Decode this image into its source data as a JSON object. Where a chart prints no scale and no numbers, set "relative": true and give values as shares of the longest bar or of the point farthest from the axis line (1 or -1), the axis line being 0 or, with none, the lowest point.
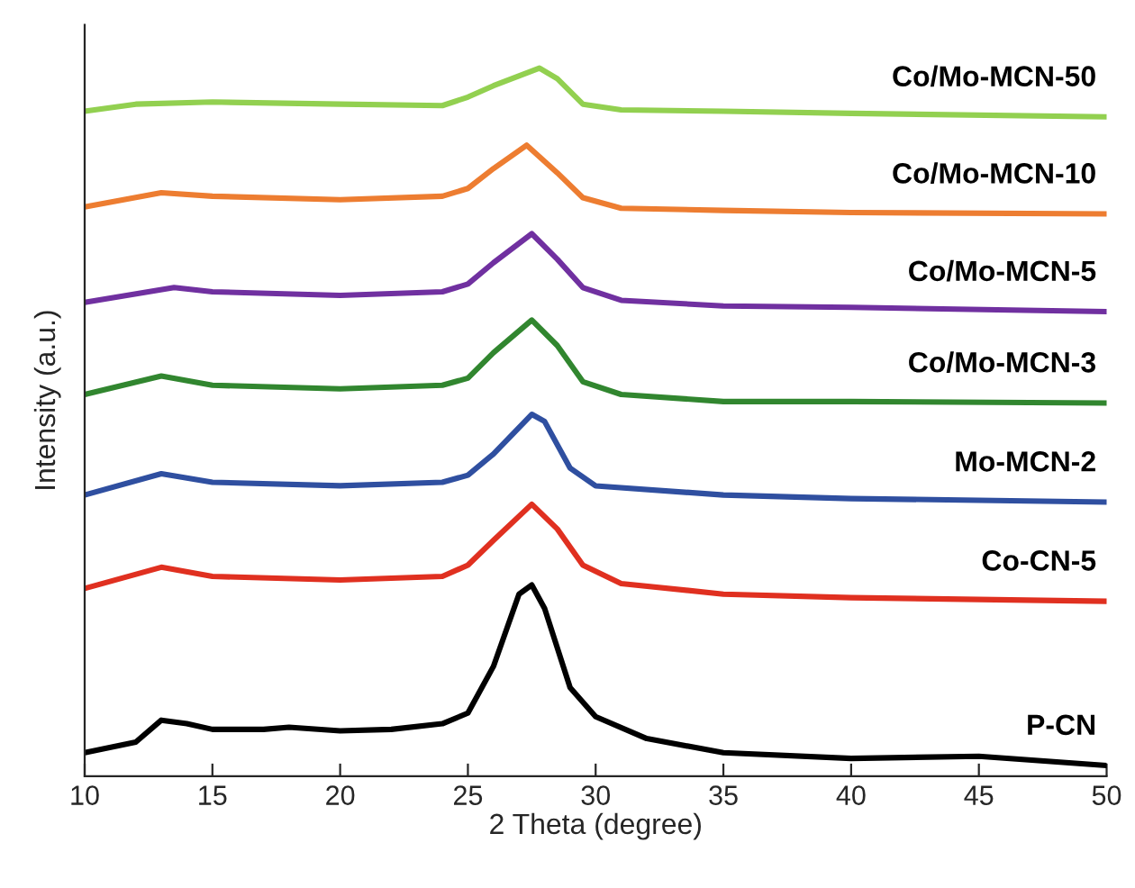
{
  "chart_data": {
    "type": "line",
    "relative": true,
    "xlabel": "2 Theta (degree)",
    "ylabel": "Intensity (a.u.)",
    "xlim": [
      10,
      50
    ],
    "xticks": [
      10,
      15,
      20,
      25,
      30,
      35,
      40,
      45,
      50
    ],
    "grid": false,
    "legend": false,
    "marker": "none",
    "line_style": "solid",
    "series": [
      {
        "name": "P-CN",
        "color": "#000000",
        "x": [
          10,
          12,
          13,
          14,
          15,
          17,
          18,
          20,
          22,
          24,
          25,
          26,
          27,
          27.5,
          28,
          29,
          30,
          32,
          35,
          40,
          45,
          50
        ],
        "values": [
          0.033,
          0.048,
          0.079,
          0.074,
          0.066,
          0.066,
          0.069,
          0.064,
          0.066,
          0.074,
          0.089,
          0.155,
          0.257,
          0.27,
          0.237,
          0.125,
          0.084,
          0.053,
          0.033,
          0.025,
          0.028,
          0.015
        ]
      },
      {
        "name": "Co-CN-5",
        "color": "#e03020",
        "x": [
          10,
          13,
          15,
          20,
          24,
          25,
          26,
          27.5,
          28.5,
          29.5,
          31,
          35,
          40,
          50
        ],
        "values": [
          0.265,
          0.295,
          0.282,
          0.277,
          0.282,
          0.298,
          0.333,
          0.384,
          0.349,
          0.298,
          0.272,
          0.257,
          0.252,
          0.247
        ]
      },
      {
        "name": "Mo-MCN-2",
        "color": "#2f4fa0",
        "x": [
          10,
          13,
          15,
          20,
          24,
          25,
          26,
          27.5,
          28,
          29,
          30,
          35,
          40,
          50
        ],
        "values": [
          0.397,
          0.427,
          0.415,
          0.41,
          0.415,
          0.425,
          0.455,
          0.511,
          0.501,
          0.435,
          0.41,
          0.397,
          0.392,
          0.387
        ]
      },
      {
        "name": "Co/Mo-MCN-3",
        "color": "#31862f",
        "x": [
          10,
          13,
          15,
          20,
          24,
          25,
          26,
          27.5,
          28.5,
          29.5,
          31,
          35,
          40,
          50
        ],
        "values": [
          0.539,
          0.565,
          0.552,
          0.547,
          0.552,
          0.562,
          0.598,
          0.644,
          0.608,
          0.557,
          0.539,
          0.529,
          0.529,
          0.527
        ]
      },
      {
        "name": "Co/Mo-MCN-5",
        "color": "#7030a0",
        "x": [
          10,
          13.5,
          15,
          20,
          24,
          25,
          26,
          27.5,
          28.5,
          29.5,
          31,
          35,
          40,
          50
        ],
        "values": [
          0.669,
          0.69,
          0.684,
          0.679,
          0.684,
          0.695,
          0.725,
          0.766,
          0.73,
          0.69,
          0.672,
          0.664,
          0.662,
          0.656
        ]
      },
      {
        "name": "Co/Mo-MCN-10",
        "color": "#ed7d31",
        "x": [
          10,
          13,
          15,
          20,
          24,
          25,
          26,
          27.3,
          28.5,
          29.5,
          31,
          35,
          40,
          50
        ],
        "values": [
          0.804,
          0.824,
          0.819,
          0.814,
          0.819,
          0.83,
          0.858,
          0.891,
          0.852,
          0.817,
          0.802,
          0.799,
          0.796,
          0.794
        ]
      },
      {
        "name": "Co/Mo-MCN-50",
        "color": "#92d050",
        "x": [
          10,
          12,
          15,
          20,
          24,
          25,
          26,
          27.8,
          28.5,
          29.5,
          31,
          35,
          40,
          50
        ],
        "values": [
          0.939,
          0.949,
          0.952,
          0.949,
          0.947,
          0.959,
          0.975,
          1,
          0.985,
          0.949,
          0.941,
          0.939,
          0.936,
          0.931
        ]
      }
    ]
  }
}
